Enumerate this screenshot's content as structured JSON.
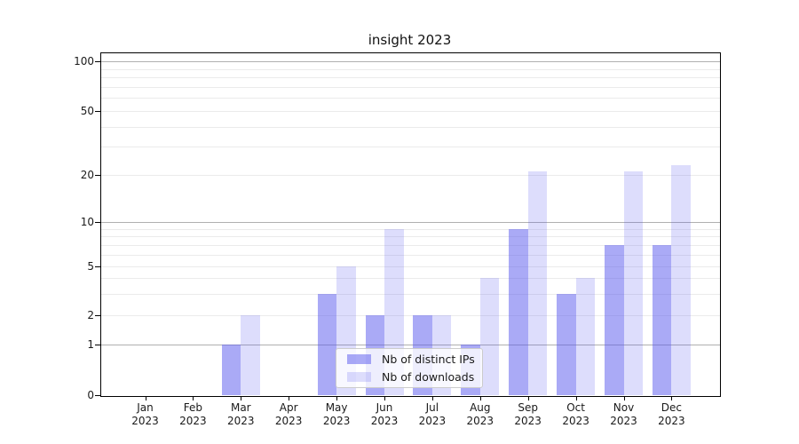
{
  "title": "insight 2023",
  "colors": {
    "bar_ips": "rgba(85,85,238,0.5)",
    "bar_downloads": "rgba(85,85,238,0.2)",
    "grid_major": "#b0b0b0",
    "grid_minor": "#ebebeb",
    "axis": "#000000"
  },
  "y_axis": {
    "ticks": [
      0,
      1,
      2,
      5,
      10,
      20,
      50,
      100
    ],
    "minor_gridlines": [
      2,
      3,
      4,
      5,
      6,
      7,
      8,
      9,
      20,
      30,
      40,
      50,
      60,
      70,
      80,
      90
    ],
    "major_gridlines": [
      1,
      10,
      100
    ]
  },
  "x_axis": {
    "labels": [
      {
        "month": "Jan",
        "year": "2023"
      },
      {
        "month": "Feb",
        "year": "2023"
      },
      {
        "month": "Mar",
        "year": "2023"
      },
      {
        "month": "Apr",
        "year": "2023"
      },
      {
        "month": "May",
        "year": "2023"
      },
      {
        "month": "Jun",
        "year": "2023"
      },
      {
        "month": "Jul",
        "year": "2023"
      },
      {
        "month": "Aug",
        "year": "2023"
      },
      {
        "month": "Sep",
        "year": "2023"
      },
      {
        "month": "Oct",
        "year": "2023"
      },
      {
        "month": "Nov",
        "year": "2023"
      },
      {
        "month": "Dec",
        "year": "2023"
      }
    ]
  },
  "legend": {
    "items": [
      {
        "label": "Nb of distinct IPs",
        "series": "ips"
      },
      {
        "label": "Nb of downloads",
        "series": "downloads"
      }
    ],
    "position": "lower center"
  },
  "chart_data": {
    "type": "bar",
    "title": "insight 2023",
    "categories": [
      "Jan 2023",
      "Feb 2023",
      "Mar 2023",
      "Apr 2023",
      "May 2023",
      "Jun 2023",
      "Jul 2023",
      "Aug 2023",
      "Sep 2023",
      "Oct 2023",
      "Nov 2023",
      "Dec 2023"
    ],
    "series": [
      {
        "name": "Nb of distinct IPs",
        "values": [
          0,
          0,
          1,
          0,
          3,
          2,
          2,
          1,
          9,
          3,
          7,
          7
        ]
      },
      {
        "name": "Nb of downloads",
        "values": [
          0,
          0,
          2,
          0,
          5,
          9,
          2,
          4,
          21,
          4,
          21,
          23
        ]
      }
    ],
    "xlabel": "",
    "ylabel": "",
    "yscale": "symlog",
    "y_ticks": [
      0,
      1,
      2,
      5,
      10,
      20,
      50,
      100
    ],
    "ylim": [
      0,
      115
    ],
    "grid": "on",
    "legend_position": "lower center"
  }
}
